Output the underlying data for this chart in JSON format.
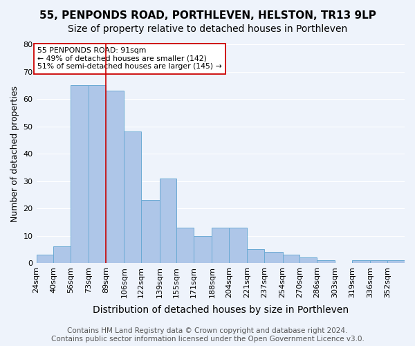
{
  "title": "55, PENPONDS ROAD, PORTHLEVEN, HELSTON, TR13 9LP",
  "subtitle": "Size of property relative to detached houses in Porthleven",
  "xlabel": "Distribution of detached houses by size in Porthleven",
  "ylabel": "Number of detached properties",
  "categories": [
    "24sqm",
    "40sqm",
    "56sqm",
    "73sqm",
    "89sqm",
    "106sqm",
    "122sqm",
    "139sqm",
    "155sqm",
    "171sqm",
    "188sqm",
    "204sqm",
    "221sqm",
    "237sqm",
    "254sqm",
    "270sqm",
    "286sqm",
    "303sqm",
    "319sqm",
    "336sqm",
    "352sqm"
  ],
  "values": [
    3,
    6,
    65,
    65,
    63,
    48,
    23,
    31,
    13,
    10,
    13,
    13,
    5,
    4,
    3,
    2,
    1,
    0,
    1,
    1,
    1
  ],
  "bar_color": "#aec6e8",
  "bar_edgecolor": "#6aaad4",
  "bg_color": "#eef3fb",
  "grid_color": "#ffffff",
  "vline_x": 89,
  "vline_color": "#cc0000",
  "annotation_text": "55 PENPONDS ROAD: 91sqm\n← 49% of detached houses are smaller (142)\n51% of semi-detached houses are larger (145) →",
  "annotation_box_color": "#ffffff",
  "annotation_box_edgecolor": "#cc0000",
  "footer_text": "Contains HM Land Registry data © Crown copyright and database right 2024.\nContains public sector information licensed under the Open Government Licence v3.0.",
  "ylim": [
    0,
    80
  ],
  "title_fontsize": 11,
  "subtitle_fontsize": 10,
  "xlabel_fontsize": 10,
  "ylabel_fontsize": 9,
  "tick_fontsize": 8,
  "footer_fontsize": 7.5,
  "bin_edges": [
    24,
    40,
    56,
    73,
    89,
    106,
    122,
    139,
    155,
    171,
    188,
    204,
    221,
    237,
    254,
    270,
    286,
    303,
    319,
    336,
    352,
    368
  ]
}
